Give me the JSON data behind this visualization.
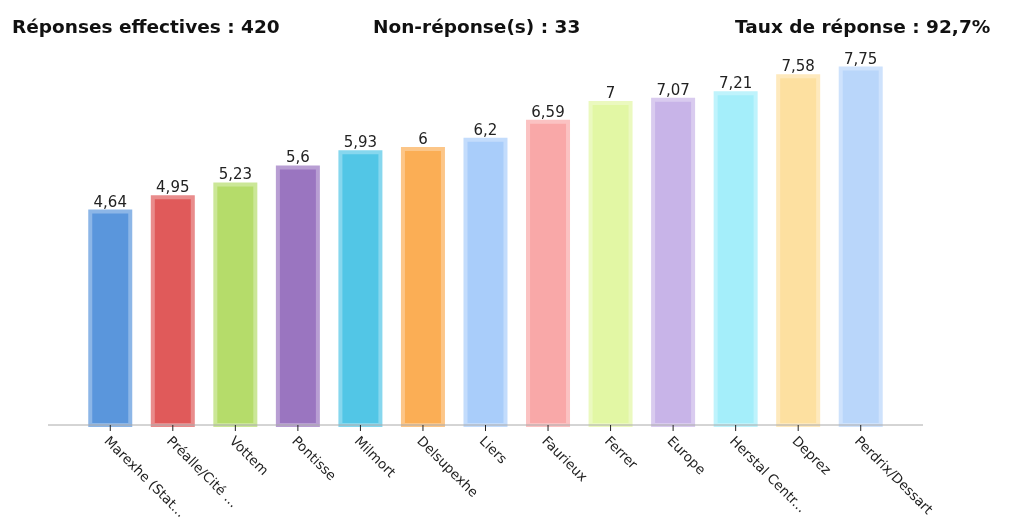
{
  "chart_data": {
    "type": "bar",
    "annotations": [
      "Réponses effectives : 420",
      "Non-réponse(s) : 33",
      "Taux de réponse : 92,7%"
    ],
    "categories": [
      "Marexhe (Stat...",
      "Préalle/Cité ...",
      "Vottem",
      "Pontisse",
      "Milmort",
      "Delsupexhe",
      "Liers",
      "Faurieux",
      "Ferrer",
      "Europe",
      "Herstal Centr...",
      "Deprez",
      "Perdrix/Dessart"
    ],
    "values": [
      4.64,
      4.95,
      5.23,
      5.6,
      5.93,
      6,
      6.2,
      6.59,
      7,
      7.07,
      7.21,
      7.58,
      7.75
    ],
    "colors": [
      "#5a96dc",
      "#e05a5a",
      "#b5dc6a",
      "#9a75c0",
      "#52c6e6",
      "#fbae55",
      "#a9cdfa",
      "#f9a8a8",
      "#e2f7a4",
      "#c8b4e8",
      "#a4eefa",
      "#fde0a0",
      "#b9d6fa"
    ],
    "value_labels": [
      "4,64",
      "4,95",
      "5,23",
      "5,6",
      "5,93",
      "6",
      "6,2",
      "6,59",
      "7",
      "7,07",
      "7,21",
      "7,58",
      "7,75"
    ]
  }
}
